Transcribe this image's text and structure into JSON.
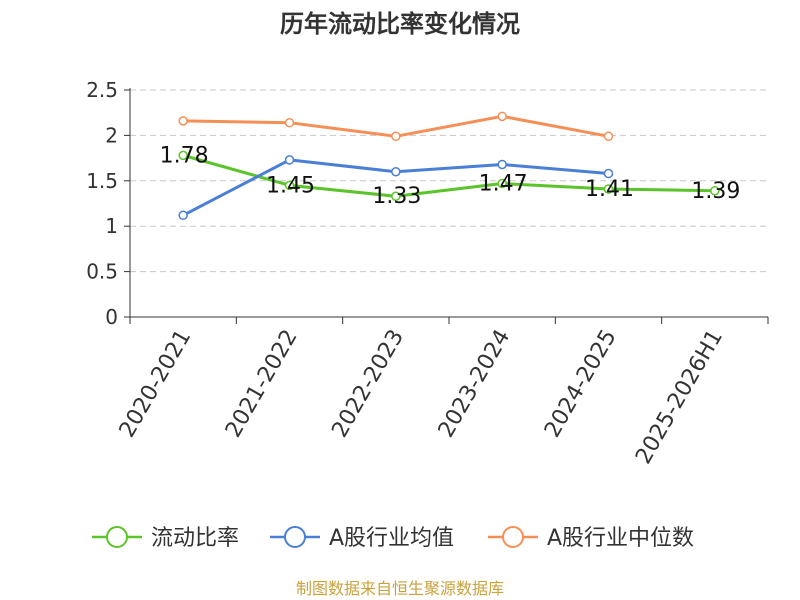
{
  "chart_data": {
    "type": "line",
    "title": "历年流动比率变化情况",
    "categories": [
      "2020-2021",
      "2021-2022",
      "2022-2023",
      "2023-2024",
      "2024-2025",
      "2025-2026H1"
    ],
    "y_ticks": [
      "0",
      "0.5",
      "1",
      "1.5",
      "2",
      "2.5"
    ],
    "ylim": [
      0,
      2.5
    ],
    "grid": true,
    "legend_position": "bottom",
    "series": [
      {
        "name": "流动比率",
        "color": "#5bc42a",
        "values": [
          1.78,
          1.45,
          1.33,
          1.47,
          1.41,
          1.39
        ],
        "labels": [
          "1.78",
          "1.45",
          "1.33",
          "1.47",
          "1.41",
          "1.39"
        ]
      },
      {
        "name": "A股行业均值",
        "color": "#4a7fd8",
        "values": [
          1.12,
          1.73,
          1.6,
          1.68,
          1.58,
          null
        ]
      },
      {
        "name": "A股行业中位数",
        "color": "#f58f56",
        "values": [
          2.16,
          2.14,
          1.99,
          2.21,
          1.99,
          null
        ]
      }
    ]
  },
  "source": "制图数据来自恒生聚源数据库"
}
